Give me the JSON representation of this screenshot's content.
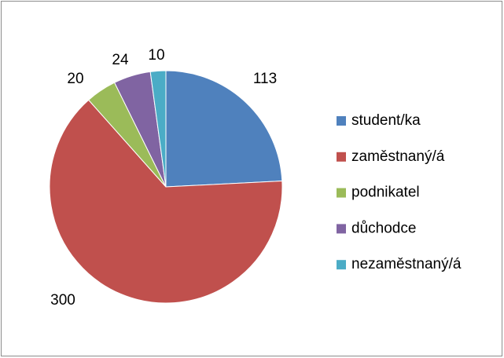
{
  "chart_data": {
    "type": "pie",
    "categories": [
      "student/ka",
      "zaměstnaný/á",
      "podnikatel",
      "důchodce",
      "nezaměstnaný/á"
    ],
    "values": [
      113,
      300,
      20,
      24,
      10
    ],
    "colors": [
      "#4f81bd",
      "#c0504d",
      "#9bbb59",
      "#8064a2",
      "#4bacc6"
    ],
    "legend": "right"
  }
}
